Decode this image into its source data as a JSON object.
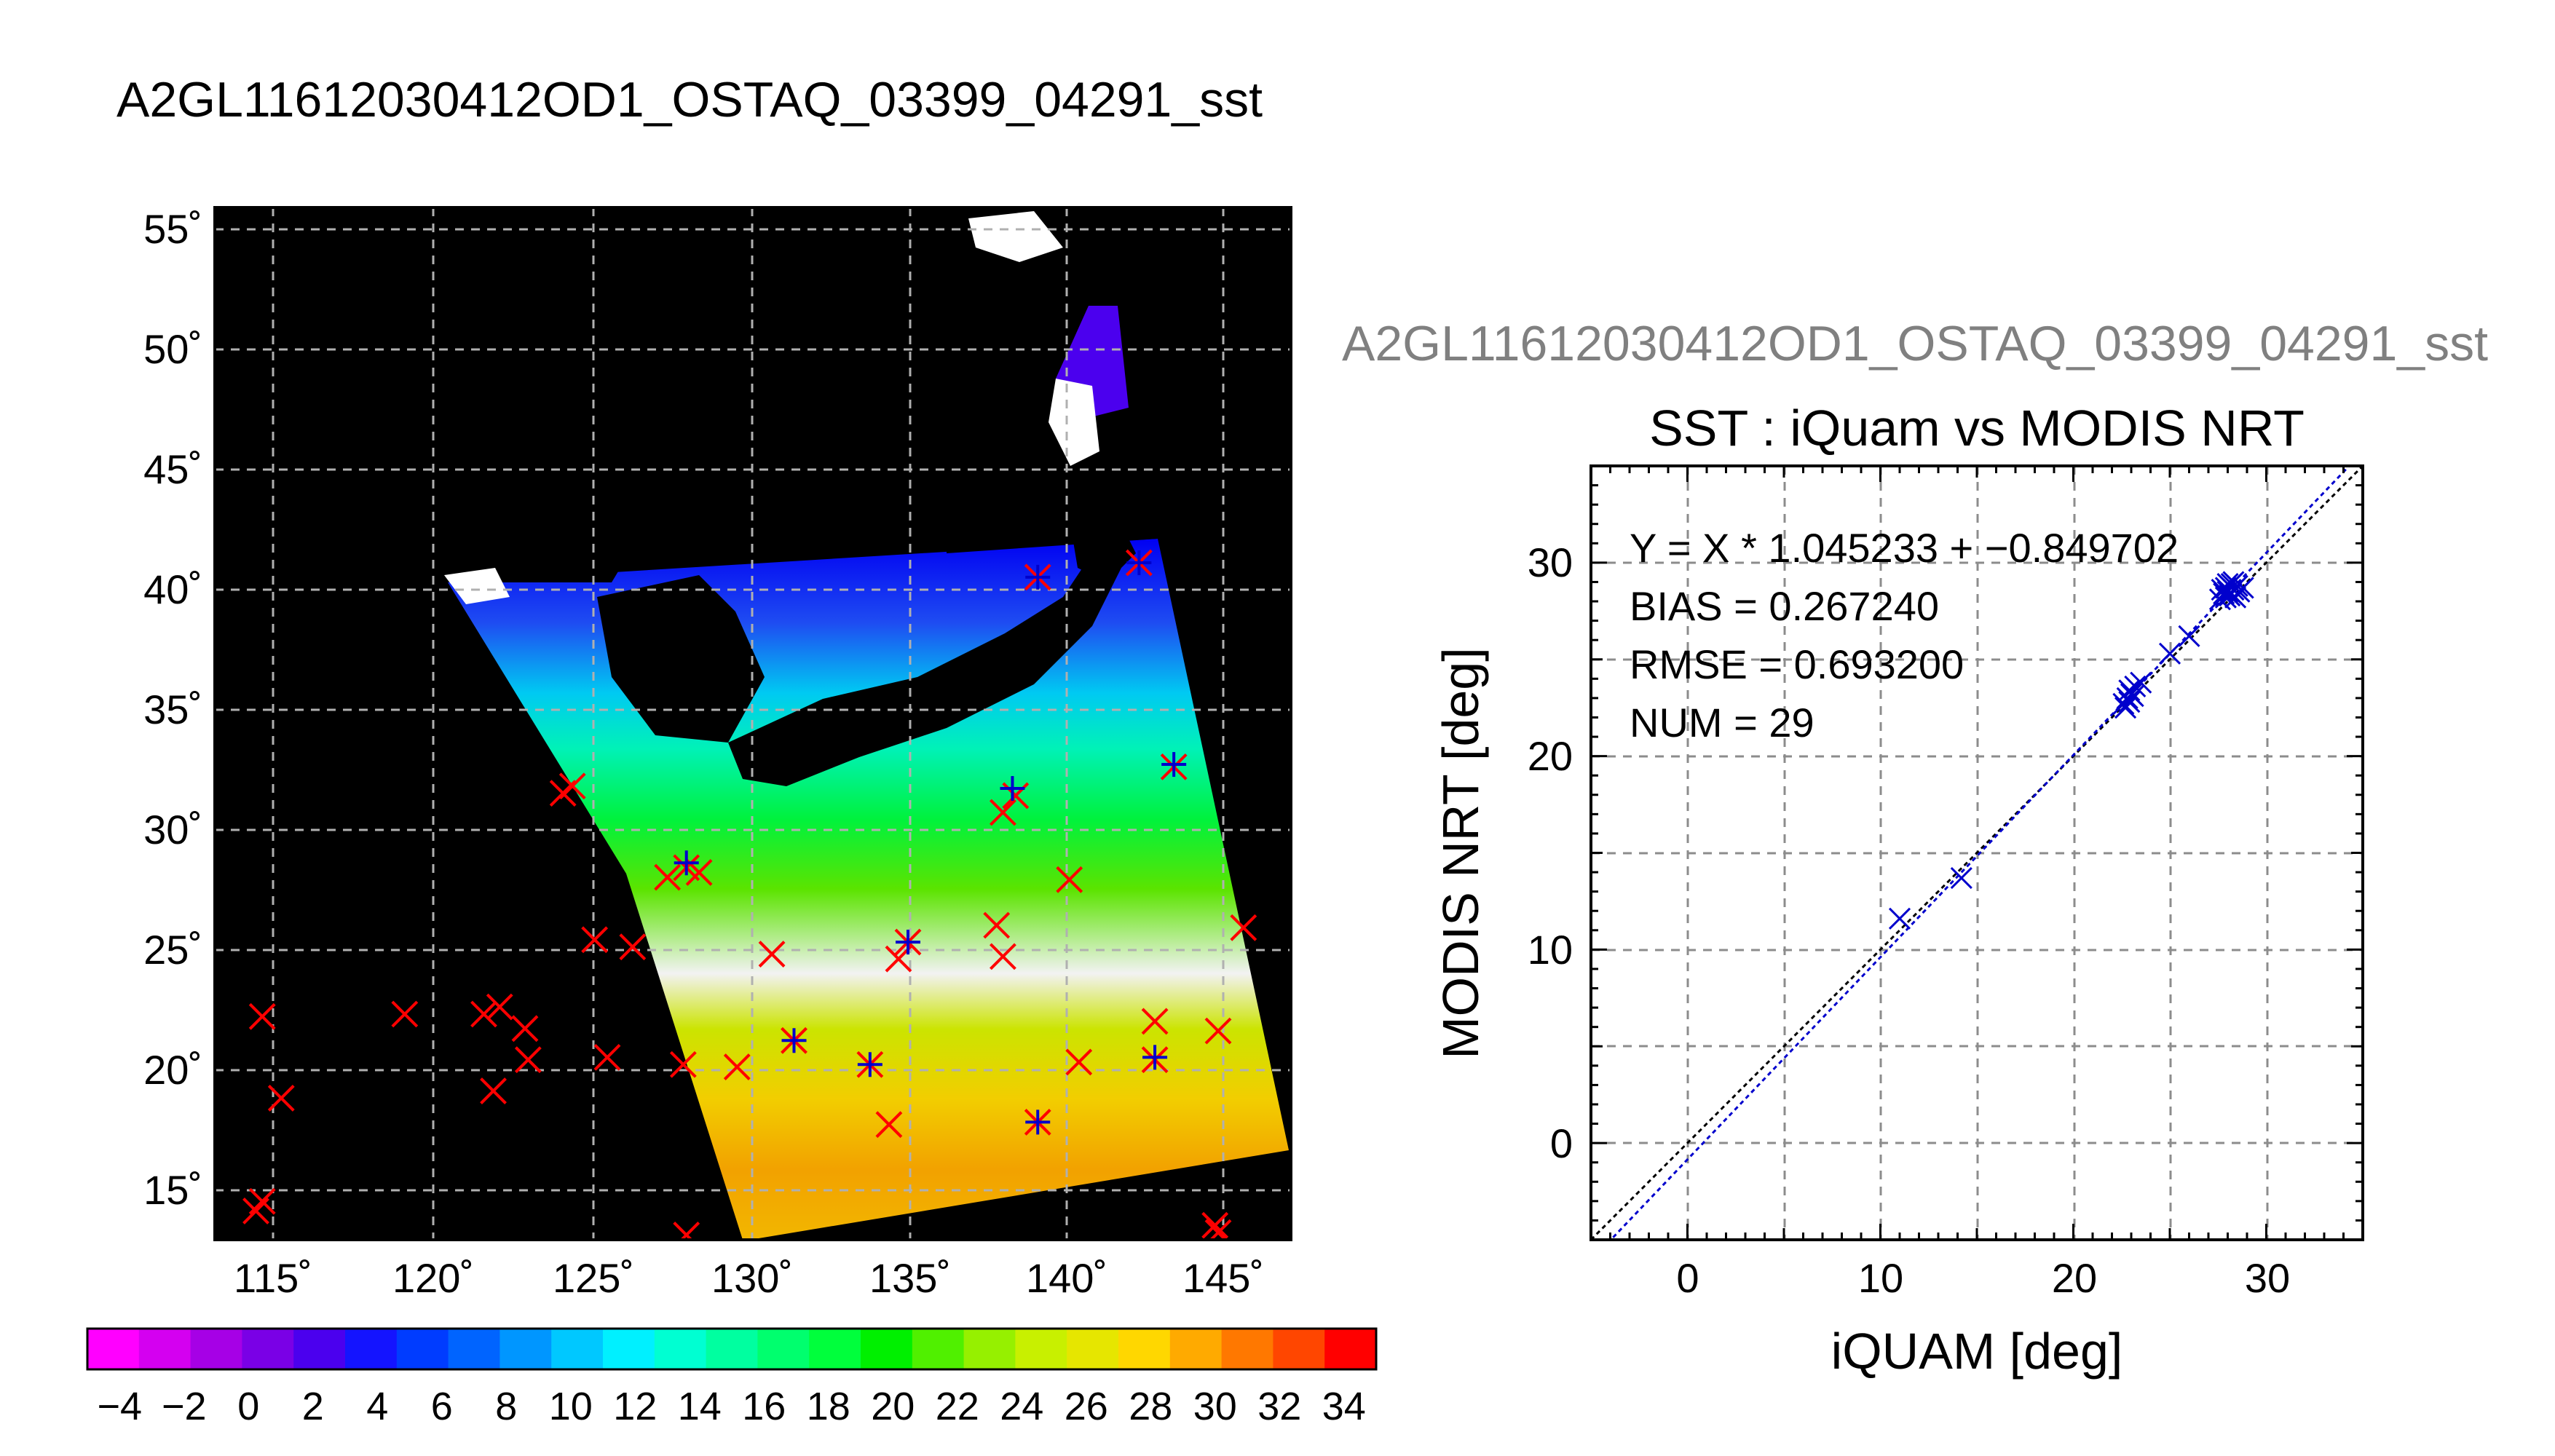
{
  "page": {
    "title": "A2GL11612030412OD1_OSTAQ_03399_04291_sst",
    "subtitle": "A2GL11612030412OD1_OSTAQ_03399_04291_sst"
  },
  "map": {
    "lat_ticks": [
      "55˚",
      "50˚",
      "45˚",
      "40˚",
      "35˚",
      "30˚",
      "25˚",
      "20˚",
      "15˚"
    ],
    "lon_ticks": [
      "115˚",
      "120˚",
      "125˚",
      "130˚",
      "135˚",
      "140˚",
      "145˚"
    ],
    "lat_range": [
      13,
      56
    ],
    "lon_range": [
      113,
      147
    ],
    "ocean_bg": "#000000",
    "grid": true
  },
  "colorbar": {
    "labels": [
      "−4",
      "−2",
      "0",
      "2",
      "4",
      "6",
      "8",
      "10",
      "12",
      "14",
      "16",
      "18",
      "20",
      "22",
      "24",
      "26",
      "28",
      "30",
      "32",
      "34"
    ],
    "range": [
      -5,
      35
    ],
    "colors": [
      "#ff00ff",
      "#d400f0",
      "#a600e6",
      "#7a00e6",
      "#4b00ee",
      "#1414ff",
      "#003cff",
      "#0064ff",
      "#0096ff",
      "#00c8ff",
      "#00f0ff",
      "#00ffd2",
      "#00ffa0",
      "#00ff6e",
      "#00ff3c",
      "#00f000",
      "#50f000",
      "#96f000",
      "#c8f000",
      "#e6e600",
      "#ffd700",
      "#ffaa00",
      "#ff7800",
      "#ff4600",
      "#ff0000"
    ]
  },
  "chart_data": [
    {
      "type": "scatter",
      "title": "SST : iQuam vs MODIS NRT",
      "xlabel": "iQUAM [deg]",
      "ylabel": "MODIS NRT [deg]",
      "xlim": [
        -5,
        35
      ],
      "ylim": [
        -5,
        35
      ],
      "xticks": [
        "0",
        "10",
        "20",
        "30"
      ],
      "yticks": [
        "0",
        "10",
        "20",
        "30"
      ],
      "grid": true,
      "stats": {
        "fit": "Y = X * 1.045233 + −0.849702",
        "bias": "BIAS = 0.267240",
        "rmse": "RMSE = 0.693200",
        "num": "NUM = 29"
      },
      "fit_line": {
        "slope": 1.045233,
        "intercept": -0.849702,
        "color": "#0000cc"
      },
      "identity_line": {
        "color": "#000000"
      },
      "points": [
        {
          "x": 11.0,
          "y": 11.6
        },
        {
          "x": 14.2,
          "y": 13.7
        },
        {
          "x": 22.6,
          "y": 22.7
        },
        {
          "x": 22.8,
          "y": 23.0
        },
        {
          "x": 22.9,
          "y": 22.8
        },
        {
          "x": 23.0,
          "y": 23.2
        },
        {
          "x": 23.2,
          "y": 23.6
        },
        {
          "x": 23.5,
          "y": 23.8
        },
        {
          "x": 22.7,
          "y": 22.5
        },
        {
          "x": 25.0,
          "y": 25.3
        },
        {
          "x": 26.0,
          "y": 26.2
        },
        {
          "x": 27.6,
          "y": 28.1
        },
        {
          "x": 27.8,
          "y": 28.4
        },
        {
          "x": 27.9,
          "y": 28.7
        },
        {
          "x": 28.0,
          "y": 28.5
        },
        {
          "x": 28.1,
          "y": 28.3
        },
        {
          "x": 28.2,
          "y": 28.9
        },
        {
          "x": 28.3,
          "y": 28.6
        },
        {
          "x": 28.4,
          "y": 28.2
        },
        {
          "x": 28.5,
          "y": 28.8
        },
        {
          "x": 28.6,
          "y": 28.5
        },
        {
          "x": 27.7,
          "y": 28.6
        },
        {
          "x": 28.0,
          "y": 28.9
        },
        {
          "x": 28.2,
          "y": 28.4
        },
        {
          "x": 28.8,
          "y": 28.7
        },
        {
          "x": 23.1,
          "y": 23.1
        },
        {
          "x": 22.9,
          "y": 23.4
        },
        {
          "x": 27.9,
          "y": 28.2
        },
        {
          "x": 28.3,
          "y": 29.0
        }
      ]
    },
    {
      "type": "scatter",
      "series": [
        {
          "marker": "x",
          "color": "#ff0000",
          "points": [
            {
              "lon": 114.5,
              "lat": 22.3
            },
            {
              "lon": 115.1,
              "lat": 18.9
            },
            {
              "lon": 114.3,
              "lat": 14.2
            },
            {
              "lon": 114.5,
              "lat": 14.6
            },
            {
              "lon": 119.0,
              "lat": 22.4
            },
            {
              "lon": 121.5,
              "lat": 22.4
            },
            {
              "lon": 122.0,
              "lat": 22.7
            },
            {
              "lon": 122.8,
              "lat": 21.8
            },
            {
              "lon": 122.9,
              "lat": 20.5
            },
            {
              "lon": 121.8,
              "lat": 19.2
            },
            {
              "lon": 124.0,
              "lat": 31.6
            },
            {
              "lon": 124.3,
              "lat": 31.9
            },
            {
              "lon": 125.0,
              "lat": 25.5
            },
            {
              "lon": 126.2,
              "lat": 25.2
            },
            {
              "lon": 125.4,
              "lat": 20.6
            },
            {
              "lon": 127.3,
              "lat": 28.1
            },
            {
              "lon": 127.9,
              "lat": 28.5
            },
            {
              "lon": 128.3,
              "lat": 28.3
            },
            {
              "lon": 127.8,
              "lat": 20.3
            },
            {
              "lon": 127.9,
              "lat": 13.2
            },
            {
              "lon": 129.5,
              "lat": 20.2
            },
            {
              "lon": 130.6,
              "lat": 24.9
            },
            {
              "lon": 131.3,
              "lat": 21.3
            },
            {
              "lon": 133.7,
              "lat": 20.3
            },
            {
              "lon": 134.3,
              "lat": 17.8
            },
            {
              "lon": 134.6,
              "lat": 24.7
            },
            {
              "lon": 134.9,
              "lat": 25.4
            },
            {
              "lon": 137.7,
              "lat": 26.1
            },
            {
              "lon": 137.9,
              "lat": 24.8
            },
            {
              "lon": 137.9,
              "lat": 30.8
            },
            {
              "lon": 138.3,
              "lat": 31.5
            },
            {
              "lon": 139.0,
              "lat": 17.9
            },
            {
              "lon": 140.0,
              "lat": 28.0
            },
            {
              "lon": 140.3,
              "lat": 20.4
            },
            {
              "lon": 142.7,
              "lat": 22.1
            },
            {
              "lon": 142.7,
              "lat": 20.5
            },
            {
              "lon": 144.7,
              "lat": 21.7
            },
            {
              "lon": 144.6,
              "lat": 13.6
            },
            {
              "lon": 144.7,
              "lat": 13.3
            },
            {
              "lon": 145.5,
              "lat": 26.0
            },
            {
              "lon": 143.3,
              "lat": 32.7
            },
            {
              "lon": 139.0,
              "lat": 40.6
            },
            {
              "lon": 142.2,
              "lat": 41.2
            }
          ]
        },
        {
          "marker": "+",
          "color": "#0000cc",
          "points": [
            {
              "lon": 127.9,
              "lat": 28.7
            },
            {
              "lon": 131.3,
              "lat": 21.3
            },
            {
              "lon": 133.7,
              "lat": 20.3
            },
            {
              "lon": 134.9,
              "lat": 25.4
            },
            {
              "lon": 138.2,
              "lat": 31.8
            },
            {
              "lon": 139.0,
              "lat": 17.9
            },
            {
              "lon": 142.7,
              "lat": 20.6
            },
            {
              "lon": 143.3,
              "lat": 32.8
            },
            {
              "lon": 139.0,
              "lat": 40.6
            },
            {
              "lon": 142.2,
              "lat": 41.2
            }
          ]
        }
      ]
    }
  ]
}
